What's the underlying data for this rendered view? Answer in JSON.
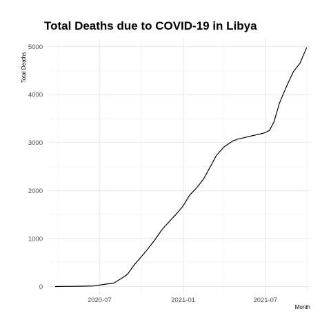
{
  "chart_data": {
    "type": "line",
    "title": "Total Deaths due to COVID-19 in Libya",
    "xlabel": "Month",
    "ylabel": "Total Deaths",
    "x_tick_labels": [
      "2020-07",
      "2021-01",
      "2021-07"
    ],
    "y_ticks": [
      0,
      1000,
      2000,
      3000,
      4000,
      5000
    ],
    "ylim": [
      -180,
      5180
    ],
    "xlim": [
      "2020-03-07",
      "2021-10-08"
    ],
    "grid": true,
    "legend": "none",
    "series": [
      {
        "x": [
          "2020-03-25",
          "2020-04-15",
          "2020-05-15",
          "2020-06-15",
          "2020-07-01",
          "2020-07-15",
          "2020-08-01",
          "2020-08-15",
          "2020-08-25",
          "2020-09-01",
          "2020-09-15",
          "2020-09-30",
          "2020-10-15",
          "2020-11-01",
          "2020-11-15",
          "2020-12-01",
          "2020-12-15",
          "2021-01-01",
          "2021-01-15",
          "2021-02-01",
          "2021-02-15",
          "2021-03-01",
          "2021-03-15",
          "2021-04-01",
          "2021-04-15",
          "2021-04-20",
          "2021-05-01",
          "2021-05-15",
          "2021-06-01",
          "2021-06-15",
          "2021-06-25",
          "2021-07-01",
          "2021-07-10",
          "2021-07-20",
          "2021-08-01",
          "2021-08-10",
          "2021-08-20",
          "2021-09-01",
          "2021-09-15",
          "2021-09-30"
        ],
        "y": [
          0,
          2,
          5,
          10,
          30,
          50,
          70,
          150,
          210,
          260,
          450,
          610,
          780,
          990,
          1180,
          1350,
          1490,
          1680,
          1900,
          2070,
          2240,
          2480,
          2730,
          2910,
          3000,
          3030,
          3070,
          3100,
          3140,
          3170,
          3190,
          3210,
          3250,
          3430,
          3820,
          4020,
          4240,
          4480,
          4650,
          4980
        ]
      }
    ]
  }
}
